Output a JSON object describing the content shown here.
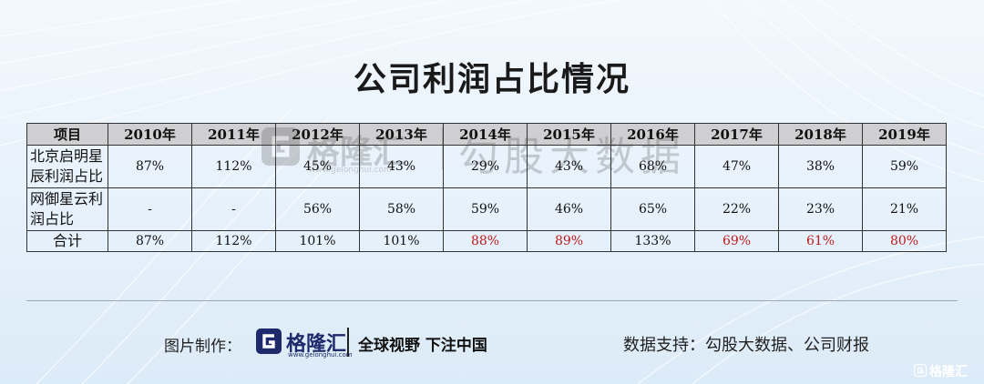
{
  "title": "公司利润占比情况",
  "table": {
    "header": [
      "项目",
      "2010年",
      "2011年",
      "2012年",
      "2013年",
      "2014年",
      "2015年",
      "2016年",
      "2017年",
      "2018年",
      "2019年"
    ],
    "rows": [
      {
        "label": "北京启明星辰利润占比",
        "cells": [
          "87%",
          "112%",
          "45%",
          "43%",
          "29%",
          "43%",
          "68%",
          "47%",
          "38%",
          "59%"
        ]
      },
      {
        "label": "网御星云利润占比",
        "cells": [
          "-",
          "-",
          "56%",
          "58%",
          "59%",
          "46%",
          "65%",
          "22%",
          "23%",
          "21%"
        ]
      },
      {
        "label": "合计",
        "cells": [
          "87%",
          "112%",
          "101%",
          "101%",
          "88%",
          "89%",
          "133%",
          "69%",
          "61%",
          "80%"
        ]
      }
    ]
  },
  "highlight_color": "#c21a1a",
  "watermark": {
    "logo_text": "格隆汇",
    "domain": "www.gelonghui.com",
    "source": "勾股大数据"
  },
  "footer": {
    "credit_label": "图片制作：",
    "logo_text": "格隆汇",
    "logo_domain": "www.gelonghui.com",
    "slogan": "全球视野 下注中国",
    "source": "数据支持：勾股大数据、公司财报"
  },
  "corner_badge": "格隆汇"
}
